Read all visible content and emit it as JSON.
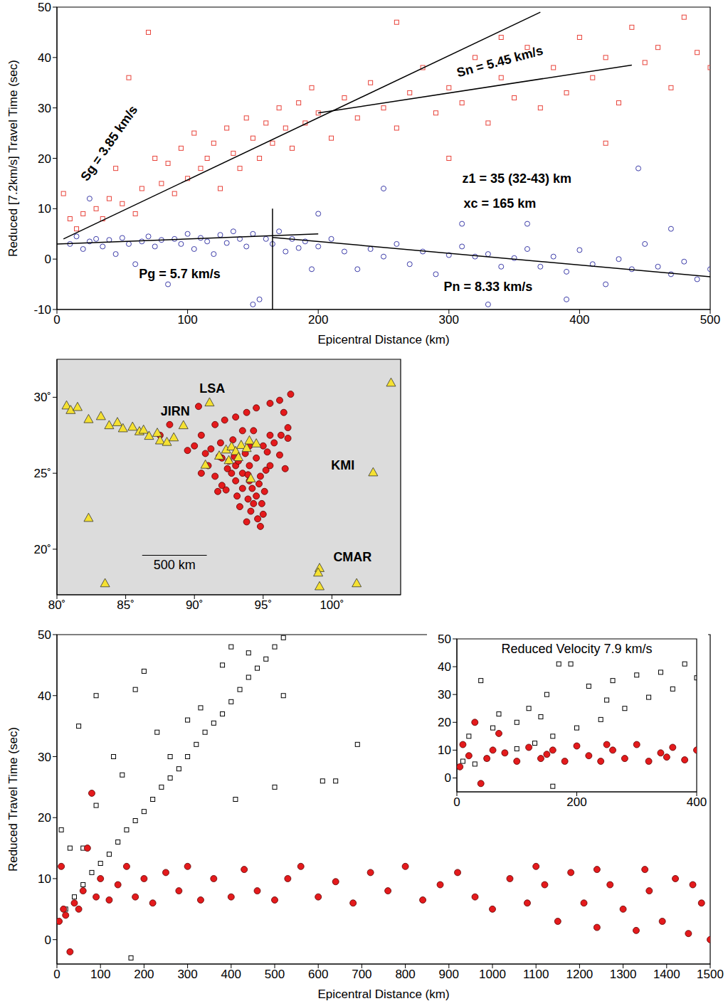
{
  "chart_data": [
    {
      "type": "scatter",
      "xlabel": "Epicentral Distance (km)",
      "ylabel": "Reduced [7.2km/s] Travel Time (sec)",
      "xlim": [
        0,
        500
      ],
      "ylim": [
        -10,
        50
      ],
      "xticks": [
        0,
        100,
        200,
        300,
        400,
        500
      ],
      "yticks": [
        -10,
        0,
        10,
        20,
        30,
        40,
        50
      ],
      "series": [
        {
          "color": "#e8433a",
          "marker": "hollow_square",
          "x": [
            5,
            10,
            15,
            20,
            25,
            30,
            35,
            40,
            45,
            50,
            55,
            60,
            65,
            70,
            75,
            80,
            85,
            90,
            95,
            100,
            105,
            110,
            115,
            120,
            125,
            130,
            135,
            140,
            145,
            150,
            155,
            160,
            165,
            170,
            175,
            180,
            185,
            190,
            195,
            200,
            210,
            220,
            230,
            240,
            250,
            260,
            270,
            280,
            290,
            300,
            310,
            320,
            330,
            340,
            350,
            360,
            370,
            380,
            390,
            400,
            410,
            420,
            430,
            440,
            450,
            460,
            470,
            480,
            490,
            500,
            300,
            420,
            260,
            340
          ],
          "values": [
            13,
            8,
            6,
            9,
            17.5,
            10,
            8,
            12,
            18,
            11,
            36,
            9,
            14,
            45,
            20,
            15,
            19,
            13,
            22,
            16,
            25,
            18,
            20,
            23,
            14,
            26,
            21,
            18,
            28,
            24,
            20,
            27,
            23,
            30,
            26,
            22,
            31,
            27,
            34,
            29,
            24,
            32,
            28,
            35,
            30,
            26,
            33,
            38,
            29,
            34,
            31,
            40,
            27,
            36,
            32,
            42,
            30,
            38,
            33,
            44,
            36,
            40,
            31,
            46,
            39,
            42,
            34,
            48,
            41,
            38,
            20,
            23,
            47,
            44
          ]
        },
        {
          "color": "#3b3ba8",
          "marker": "hollow_circle",
          "x": [
            10,
            15,
            20,
            25,
            30,
            35,
            40,
            45,
            50,
            55,
            60,
            65,
            70,
            75,
            80,
            85,
            90,
            95,
            100,
            105,
            110,
            115,
            120,
            125,
            130,
            135,
            140,
            145,
            150,
            155,
            160,
            165,
            170,
            175,
            180,
            185,
            190,
            195,
            200,
            210,
            220,
            230,
            240,
            250,
            260,
            270,
            280,
            290,
            300,
            310,
            320,
            330,
            340,
            350,
            360,
            370,
            380,
            390,
            400,
            410,
            420,
            430,
            440,
            450,
            460,
            470,
            480,
            490,
            500,
            25,
            200,
            250,
            310,
            360,
            445,
            390,
            150,
            470,
            330
          ],
          "values": [
            3,
            4.5,
            2,
            3.5,
            4,
            2.5,
            3.8,
            1,
            4.2,
            3,
            -1,
            3.5,
            4.5,
            2.5,
            3.8,
            -5,
            4,
            3,
            5,
            2,
            4.2,
            3.5,
            1,
            4.8,
            3.2,
            5.5,
            4,
            2.5,
            5,
            -8,
            4,
            3,
            5.5,
            1.5,
            4,
            2.2,
            3.5,
            -2,
            2.5,
            4,
            1.5,
            -2,
            2,
            0.5,
            3,
            -1,
            1.5,
            -3,
            0.8,
            2.5,
            0.5,
            1,
            -1.5,
            0.2,
            2,
            -1.5,
            0.5,
            -2.5,
            1.8,
            -1,
            -5,
            0,
            -2,
            3,
            -1.5,
            -3,
            -0.5,
            -4,
            -2,
            12,
            9,
            14,
            7,
            7,
            18,
            -8,
            -9,
            6,
            -9
          ]
        }
      ],
      "lines": [
        {
          "label": "Sg = 3.85 km/s",
          "color": "#000000",
          "x": [
            5,
            370
          ],
          "values": [
            4,
            49
          ],
          "label_x": 40,
          "label_y": 23
        },
        {
          "label": "Sn = 5.45 km/s",
          "color": "#000000",
          "x": [
            200,
            440
          ],
          "values": [
            29,
            38.5
          ],
          "label_x": 339,
          "label_y": 39.2
        },
        {
          "label": "Pg = 5.7 km/s",
          "color": "#000000",
          "x": [
            0,
            200
          ],
          "values": [
            3,
            5
          ],
          "label_x": 94,
          "label_y": -3
        },
        {
          "label": "Pn = 8.33 km/s",
          "color": "#000000",
          "x": [
            165,
            500
          ],
          "values": [
            4.3,
            -3.5
          ],
          "label_x": 330,
          "label_y": -5.5
        },
        {
          "color": "#000000",
          "x": [
            165,
            165
          ],
          "values": [
            -10,
            10
          ]
        }
      ],
      "annotations": [
        {
          "text": "z1 = 35 (32-43) km",
          "x": 352,
          "y": 16
        },
        {
          "text": "xc = 165 km",
          "x": 339,
          "y": 11.1
        }
      ]
    },
    {
      "type": "scatter",
      "xlim": [
        80,
        105
      ],
      "ylim": [
        17,
        32.5
      ],
      "xticks": [
        {
          "value": 80,
          "label": "80˚"
        },
        {
          "value": 85,
          "label": "85˚"
        },
        {
          "value": 90,
          "label": "90˚"
        },
        {
          "value": 95,
          "label": "95˚"
        },
        {
          "value": 100,
          "label": "100˚"
        }
      ],
      "yticks": [
        {
          "value": 20,
          "label": "20˚"
        },
        {
          "value": 25,
          "label": "25˚"
        },
        {
          "value": 30,
          "label": "30˚"
        }
      ],
      "series": [
        {
          "color": "#e41a1c",
          "marker": "filled_circle",
          "x": [
            92,
            92.5,
            93,
            93.5,
            94,
            94.2,
            94.5,
            94.3,
            94.1,
            94.6,
            93.8,
            94.8,
            93.5,
            93,
            92.7,
            94.8,
            95.2,
            95.5,
            95.3,
            95.8,
            96.3,
            96.8,
            96.5,
            97,
            96.2,
            95.5,
            94.5,
            93.8,
            93,
            92.2,
            91.5,
            90.5,
            90,
            89.5,
            91,
            90.5,
            91.5,
            92,
            91.7,
            93.3,
            93.9,
            94.9,
            95,
            94,
            93.7,
            94.5,
            95,
            95.5,
            92.8,
            91.9,
            90.8,
            91.2,
            93.5,
            94.3,
            92.9,
            93.9,
            94.7,
            95.1,
            93.1,
            92.4,
            88.2,
            90.3,
            87.5,
            96.8,
            96.6,
            92.3,
            91.8,
            93.2,
            94,
            96.2
          ],
          "values": [
            26,
            25.8,
            25.5,
            25,
            24.5,
            24,
            23.5,
            23,
            22.5,
            22,
            21.8,
            21.5,
            24,
            24.5,
            25,
            24.8,
            25.2,
            25.5,
            26.4,
            27,
            27.5,
            28,
            29,
            30.2,
            29.8,
            29.6,
            29.3,
            29,
            28.7,
            28.5,
            28.2,
            27.5,
            26.8,
            26.5,
            25.5,
            25,
            24.8,
            24.2,
            23.8,
            22.8,
            23.3,
            23,
            22.3,
            25.5,
            26.3,
            26,
            26.8,
            27.5,
            27.2,
            27,
            26.3,
            26.6,
            27.8,
            27.8,
            26.1,
            24.9,
            24.3,
            23.8,
            23.5,
            25.3,
            28.2,
            29.4,
            27.5,
            27.3,
            25.3,
            23.9,
            26.1,
            25.8,
            26.8,
            26.2
          ]
        },
        {
          "color": "#f5e132",
          "marker": "triangle",
          "x": [
            80.7,
            81,
            81.5,
            82.3,
            83.2,
            83.8,
            84.4,
            84.8,
            85.5,
            86,
            86.3,
            86.7,
            87.3,
            87.5,
            88,
            88.5,
            91.1,
            90.8,
            91.8,
            92.3,
            92.7,
            93,
            93.4,
            93.8,
            94,
            94.5,
            92.5,
            93.2,
            94.1,
            82.3,
            83.5,
            99.1,
            99,
            99.1,
            101.8,
            103,
            104.3,
            89.2
          ],
          "values": [
            29.5,
            29.2,
            29.4,
            28.6,
            28.8,
            28.2,
            28.4,
            28,
            28.1,
            27.8,
            27.9,
            27.5,
            27.7,
            27.2,
            27.1,
            27.4,
            29.7,
            25.6,
            26.2,
            26.6,
            26.8,
            26.5,
            26.9,
            26.7,
            27.2,
            27,
            25.9,
            26.1,
            24.7,
            22.1,
            17.8,
            18.8,
            18.5,
            17.6,
            17.8,
            25.1,
            31,
            28.2
          ]
        }
      ],
      "annotations": [
        {
          "text": "LSA",
          "x": 91.3,
          "y": 30.6
        },
        {
          "text": "JIRN",
          "x": 88.6,
          "y": 29.1
        },
        {
          "text": "KMI",
          "x": 100.8,
          "y": 25.5
        },
        {
          "text": "CMAR",
          "x": 101.5,
          "y": 19.5
        }
      ],
      "scale_bar": {
        "label": "500 km",
        "x": [
          86.2,
          90.9
        ],
        "y": 19.6
      }
    },
    {
      "type": "scatter",
      "xlabel": "Epicentral Distance (km)",
      "ylabel": "Reduced Travel Time (sec)",
      "xlim": [
        0,
        1500
      ],
      "ylim": [
        -4,
        50
      ],
      "xticks": [
        0,
        100,
        200,
        300,
        400,
        500,
        600,
        700,
        800,
        900,
        1000,
        1100,
        1200,
        1300,
        1400,
        1500
      ],
      "yticks": [
        0,
        10,
        20,
        30,
        40,
        50
      ],
      "series": [
        {
          "color": "#000000",
          "marker": "hollow_square",
          "x": [
            20,
            40,
            60,
            80,
            100,
            120,
            140,
            160,
            180,
            200,
            220,
            240,
            260,
            280,
            300,
            320,
            340,
            360,
            380,
            400,
            420,
            440,
            460,
            480,
            500,
            520,
            30,
            60,
            90,
            130,
            150,
            180,
            200,
            230,
            260,
            300,
            330,
            380,
            400,
            440,
            90,
            10,
            50,
            170,
            410,
            500,
            610,
            640,
            690,
            520
          ],
          "values": [
            5,
            7,
            9,
            11,
            12.5,
            14,
            16,
            18,
            19.5,
            21,
            23,
            25,
            26.5,
            28,
            30,
            32,
            34,
            35.5,
            37,
            39,
            41,
            43,
            44.5,
            46,
            48,
            49.5,
            15,
            15,
            22,
            30,
            27,
            41,
            44,
            34,
            30,
            36,
            38,
            45,
            48,
            47,
            40,
            18,
            35,
            -3,
            23,
            25,
            26,
            26,
            32,
            40
          ]
        },
        {
          "color": "#e41a1c",
          "marker": "filled_circle",
          "x": [
            5,
            10,
            15,
            20,
            30,
            40,
            50,
            60,
            70,
            80,
            90,
            100,
            120,
            140,
            160,
            180,
            200,
            220,
            250,
            280,
            300,
            330,
            360,
            400,
            430,
            460,
            500,
            530,
            560,
            600,
            640,
            680,
            720,
            760,
            800,
            840,
            880,
            920,
            960,
            1000,
            1040,
            1080,
            1120,
            1150,
            1180,
            1210,
            1240,
            1270,
            1300,
            1330,
            1360,
            1390,
            1420,
            1450,
            1480,
            1500,
            1240,
            1100,
            1350,
            1460
          ],
          "values": [
            3,
            12,
            5,
            4,
            -2,
            6,
            5,
            8,
            15,
            24,
            7,
            10,
            6.5,
            9,
            12,
            7,
            10,
            6,
            11,
            8,
            12,
            6.5,
            10,
            7,
            11.5,
            8,
            6.5,
            10,
            12,
            7,
            9.5,
            6,
            11,
            8,
            12,
            6.5,
            9,
            11,
            7,
            5,
            10,
            6,
            9,
            3,
            11,
            6,
            2,
            9,
            5,
            1.5,
            8,
            3,
            10,
            1,
            6,
            0,
            11.5,
            12,
            11.5,
            9
          ]
        }
      ]
    },
    {
      "type": "scatter",
      "title": "Reduced Velocity 7.9 km/s",
      "xlim": [
        0,
        400
      ],
      "ylim": [
        -5,
        50
      ],
      "xticks": [
        0,
        200,
        400
      ],
      "yticks": [
        0,
        10,
        20,
        30,
        40,
        50
      ],
      "series": [
        {
          "color": "#000000",
          "marker": "hollow_square",
          "x": [
            10,
            30,
            50,
            80,
            100,
            130,
            160,
            200,
            240,
            280,
            320,
            360,
            400,
            20,
            40,
            70,
            100,
            120,
            150,
            170,
            190,
            220,
            260,
            300,
            340,
            380,
            160,
            60,
            250,
            140
          ],
          "values": [
            6,
            5,
            7,
            9,
            10.5,
            12.5,
            15,
            18,
            21,
            25,
            29,
            32,
            36,
            15,
            35,
            23,
            20,
            25,
            30,
            41,
            41,
            33,
            35,
            37,
            38,
            41,
            -3,
            18,
            28,
            22
          ]
        },
        {
          "color": "#e41a1c",
          "marker": "filled_circle",
          "x": [
            5,
            10,
            20,
            30,
            40,
            50,
            60,
            70,
            80,
            100,
            120,
            140,
            160,
            180,
            200,
            220,
            240,
            260,
            280,
            300,
            320,
            340,
            360,
            380,
            400,
            150,
            250,
            350
          ],
          "values": [
            4,
            12,
            8,
            20,
            -2,
            7,
            10,
            16,
            9,
            6,
            11,
            7,
            10,
            6,
            11.5,
            8,
            6,
            10,
            7,
            12,
            6,
            9,
            11,
            6.5,
            10,
            8.5,
            12,
            7.5
          ]
        }
      ]
    }
  ]
}
